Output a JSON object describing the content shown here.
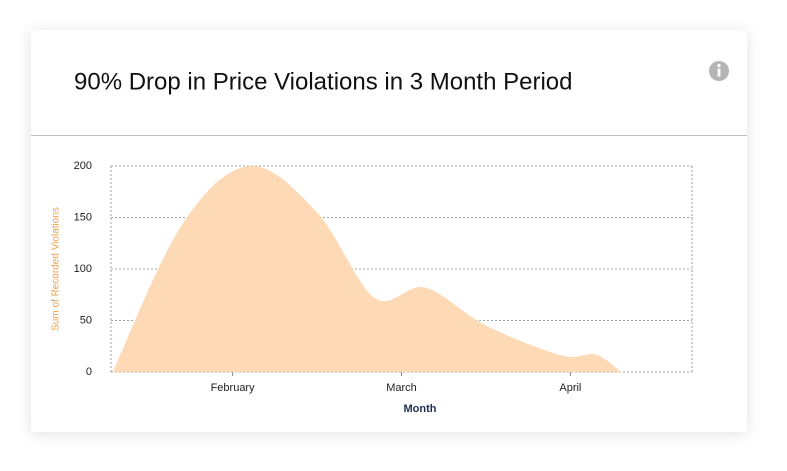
{
  "chart_data": {
    "type": "area",
    "title": "90% Drop in Price Violations in 3 Month Period",
    "x_label": "Month",
    "y_label": "Sum of Recorded Violations",
    "x": [
      0.29,
      0.7,
      1.1,
      1.5,
      1.84,
      2.14,
      2.5,
      2.95,
      3.15,
      3.3
    ],
    "values": [
      0,
      143,
      200,
      155,
      72,
      82,
      45,
      16,
      17,
      0
    ],
    "color": "#fdd9b5",
    "xlim": [
      0.28,
      3.72
    ],
    "xticks": [
      {
        "value": 1,
        "label": "February"
      },
      {
        "value": 2,
        "label": "March"
      },
      {
        "value": 3,
        "label": "April"
      }
    ],
    "ylim": [
      0,
      200
    ],
    "yticks": [
      0,
      50,
      100,
      150,
      200
    ],
    "grid": true
  }
}
